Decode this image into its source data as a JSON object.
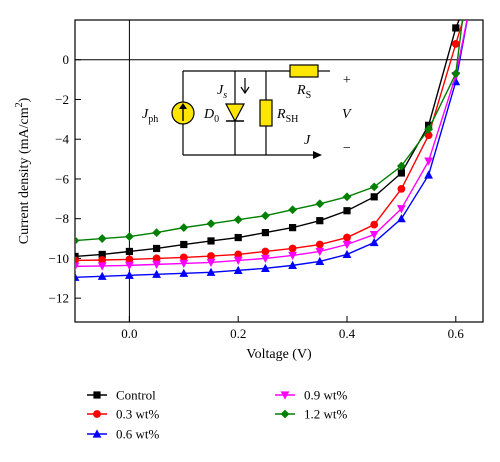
{
  "chart_data": {
    "type": "line",
    "title": "",
    "xlabel": "Voltage (V)",
    "ylabel": "Current density (mA/cm",
    "ylabel_sup": "2",
    "ylabel_close": ")",
    "xlim": [
      -0.1,
      0.65
    ],
    "ylim": [
      -13.2,
      2.0
    ],
    "xticks": [
      0.0,
      0.2,
      0.4,
      0.6
    ],
    "xtick_labels": [
      "0.0",
      "0.2",
      "0.4",
      "0.6"
    ],
    "yticks": [
      0,
      -2,
      -4,
      -6,
      -8,
      -10,
      -12
    ],
    "ytick_labels": [
      "0",
      "−2",
      "−4",
      "−6",
      "−8",
      "−10",
      "−12"
    ],
    "zero_lines": true,
    "legend_position": "bottom",
    "series": [
      {
        "name": "Control",
        "color": "#000000",
        "marker": "square",
        "x": [
          -0.1,
          -0.05,
          0.0,
          0.05,
          0.1,
          0.15,
          0.2,
          0.25,
          0.3,
          0.35,
          0.4,
          0.45,
          0.5,
          0.55,
          0.6,
          0.615
        ],
        "y": [
          -9.9,
          -9.8,
          -9.65,
          -9.5,
          -9.3,
          -9.12,
          -8.95,
          -8.7,
          -8.45,
          -8.1,
          -7.6,
          -6.9,
          -5.7,
          -3.3,
          1.6,
          2.6
        ]
      },
      {
        "name": "0.3 wt%",
        "color": "#ff0000",
        "marker": "circle",
        "x": [
          -0.1,
          -0.05,
          0.0,
          0.05,
          0.1,
          0.15,
          0.2,
          0.25,
          0.3,
          0.35,
          0.4,
          0.45,
          0.5,
          0.55,
          0.6,
          0.62
        ],
        "y": [
          -10.1,
          -10.08,
          -10.05,
          -10.0,
          -9.95,
          -9.88,
          -9.8,
          -9.65,
          -9.5,
          -9.3,
          -8.95,
          -8.3,
          -6.5,
          -3.8,
          0.8,
          2.6
        ]
      },
      {
        "name": "0.6 wt%",
        "color": "#0000ff",
        "marker": "triangle",
        "x": [
          -0.1,
          -0.05,
          0.0,
          0.05,
          0.1,
          0.15,
          0.2,
          0.25,
          0.3,
          0.35,
          0.4,
          0.45,
          0.5,
          0.55,
          0.6,
          0.625
        ],
        "y": [
          -10.95,
          -10.9,
          -10.85,
          -10.8,
          -10.75,
          -10.7,
          -10.6,
          -10.5,
          -10.35,
          -10.15,
          -9.8,
          -9.2,
          -8.0,
          -5.8,
          -1.1,
          2.6
        ]
      },
      {
        "name": "0.9 wt%",
        "color": "#ff00ff",
        "marker": "triangle-down",
        "x": [
          -0.1,
          -0.05,
          0.0,
          0.05,
          0.1,
          0.15,
          0.2,
          0.25,
          0.3,
          0.35,
          0.4,
          0.45,
          0.5,
          0.55,
          0.6,
          0.625
        ],
        "y": [
          -10.4,
          -10.38,
          -10.35,
          -10.3,
          -10.25,
          -10.2,
          -10.1,
          -10.0,
          -9.85,
          -9.65,
          -9.3,
          -8.8,
          -7.5,
          -5.1,
          -0.8,
          2.6
        ]
      },
      {
        "name": "1.2 wt%",
        "color": "#008000",
        "marker": "diamond",
        "x": [
          -0.1,
          -0.05,
          0.0,
          0.05,
          0.1,
          0.15,
          0.2,
          0.25,
          0.3,
          0.35,
          0.4,
          0.45,
          0.5,
          0.55,
          0.6,
          0.615
        ],
        "y": [
          -9.1,
          -9.0,
          -8.9,
          -8.7,
          -8.45,
          -8.25,
          -8.05,
          -7.85,
          -7.55,
          -7.25,
          -6.9,
          -6.4,
          -5.35,
          -3.5,
          -0.7,
          2.6
        ]
      }
    ]
  },
  "inset": {
    "jph_main": "J",
    "jph_sub": "ph",
    "js_main": "J",
    "js_sub": "s",
    "d0_main": "D",
    "d0_sub": "0",
    "rsh_main": "R",
    "rsh_sub": "SH",
    "rs_main": "R",
    "rs_sub": "S",
    "j_label": "J",
    "plus": "+",
    "v_label": "V",
    "minus": "−"
  }
}
